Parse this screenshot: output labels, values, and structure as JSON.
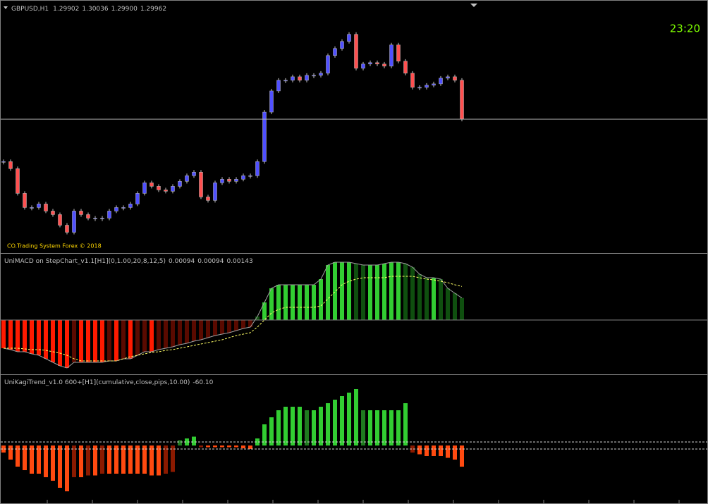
{
  "chart_data": [
    {
      "type": "candlestick",
      "title": "GBPUSD,H1",
      "quotes": [
        "1.29902",
        "1.30036",
        "1.29900",
        "1.29962"
      ],
      "clock": "23:20",
      "copyright": "CO.Trading System Forex © 2018",
      "values": [
        1.29662,
        1.29612,
        1.29437,
        1.29337,
        1.29337,
        1.29362,
        1.29312,
        1.29287,
        1.29212,
        1.29162,
        1.29312,
        1.29287,
        1.29262,
        1.29262,
        1.29262,
        1.29312,
        1.29337,
        1.29337,
        1.29362,
        1.29437,
        1.29512,
        1.29487,
        1.29462,
        1.29452,
        1.29487,
        1.29522,
        1.29562,
        1.29587,
        1.29412,
        1.29387,
        1.29512,
        1.29537,
        1.29522,
        1.29537,
        1.29562,
        1.29562,
        1.29662,
        1.30012,
        1.30162,
        1.30237,
        1.30237,
        1.30262,
        1.30237,
        1.30272,
        1.30272,
        1.30287,
        1.30412,
        1.30462,
        1.30512,
        1.30562,
        1.30322,
        1.30352,
        1.30362,
        1.30352,
        1.30337,
        1.30487,
        1.30372,
        1.30287,
        1.30187,
        1.30187,
        1.30202,
        1.30212,
        1.30252,
        1.30262,
        1.30237,
        1.29962
      ],
      "ylim": [
        1.2902,
        1.3079
      ],
      "up_color": "#5050ff",
      "down_color": "#ff5050",
      "line_color": "#c0c0c0"
    },
    {
      "type": "macd",
      "title": "UniMACD on StepChart_v1.1[H1](0,1.00,20,8,12,5)",
      "readouts": [
        "0.00094",
        "0.00094",
        "0.00143"
      ],
      "values": [
        -0.0012,
        -0.00126,
        -0.00135,
        -0.00135,
        -0.00144,
        -0.0015,
        -0.00165,
        -0.0018,
        -0.00195,
        -0.00204,
        -0.0018,
        -0.0018,
        -0.0018,
        -0.0018,
        -0.0018,
        -0.00174,
        -0.00174,
        -0.00165,
        -0.00165,
        -0.0015,
        -0.00135,
        -0.00135,
        -0.00126,
        -0.0012,
        -0.00114,
        -0.00105,
        -0.00099,
        -0.0009,
        -0.00084,
        -0.00075,
        -0.00066,
        -0.0006,
        -0.00054,
        -0.00045,
        -0.00036,
        -0.0003,
        0.00015,
        0.00075,
        0.00135,
        0.0015,
        0.0015,
        0.0015,
        0.0015,
        0.0015,
        0.0015,
        0.00174,
        0.00234,
        0.00246,
        0.00246,
        0.00246,
        0.0024,
        0.00234,
        0.00234,
        0.00234,
        0.0024,
        0.00246,
        0.00246,
        0.0024,
        0.00225,
        0.00195,
        0.0018,
        0.0018,
        0.00174,
        0.00135,
        0.00114,
        0.00094
      ],
      "signal": [
        -0.0012,
        -0.0012,
        -0.0012,
        -0.00123,
        -0.00126,
        -0.00126,
        -0.00129,
        -0.00135,
        -0.00141,
        -0.0015,
        -0.00165,
        -0.00174,
        -0.00174,
        -0.00174,
        -0.00174,
        -0.00174,
        -0.00174,
        -0.00165,
        -0.00156,
        -0.0015,
        -0.00144,
        -0.00138,
        -0.00135,
        -0.00129,
        -0.00126,
        -0.0012,
        -0.00114,
        -0.00108,
        -0.00102,
        -0.00096,
        -0.0009,
        -0.00084,
        -0.00075,
        -0.00066,
        -0.0006,
        -0.00054,
        -0.0003,
        0,
        0.0003,
        0.00045,
        0.00054,
        0.00054,
        0.00054,
        0.00054,
        0.00054,
        0.0006,
        0.0009,
        0.0012,
        0.0015,
        0.00165,
        0.00174,
        0.0018,
        0.0018,
        0.0018,
        0.0018,
        0.00186,
        0.00186,
        0.00186,
        0.00186,
        0.0018,
        0.00174,
        0.00171,
        0.00165,
        0.00159,
        0.0015,
        0.00143
      ],
      "ylim": [
        -0.00228,
        0.00276
      ],
      "colors": {
        "up_strong": "#32cd32",
        "up_weak": "#0f4f0f",
        "down_strong": "#ff1a00",
        "down_weak": "#5a0a00",
        "signal": "#ffff66",
        "main": "#a0a0a0"
      }
    },
    {
      "type": "kagi",
      "title": "UniKagiTrend_v1.0 600+[H1](cumulative,close,pips,10.00)",
      "readouts": [
        "-60.10"
      ],
      "values": [
        -20,
        -40,
        -60,
        -70,
        -80,
        -80,
        -90,
        -100,
        -120,
        -130,
        -90,
        -90,
        -85,
        -85,
        -80,
        -80,
        -80,
        -80,
        -80,
        -80,
        -80,
        -85,
        -85,
        -80,
        -75,
        15,
        20,
        25,
        -5,
        -5,
        -5,
        -5,
        -5,
        -5,
        -8,
        -10,
        20,
        60,
        80,
        100,
        110,
        110,
        110,
        100,
        100,
        110,
        120,
        130,
        140,
        150,
        160,
        100,
        100,
        100,
        100,
        100,
        100,
        120,
        -20,
        -25,
        -30,
        -30,
        -30,
        -35,
        -40,
        -60.1
      ],
      "levels": [
        10,
        -10
      ],
      "ylim": [
        -160,
        194
      ],
      "colors": {
        "up_strong": "#32cd32",
        "up_weak": "#1f7a1f",
        "down_strong": "#ff4a10",
        "down_weak": "#8b1a00",
        "levels": "#d0d0d0"
      }
    }
  ]
}
